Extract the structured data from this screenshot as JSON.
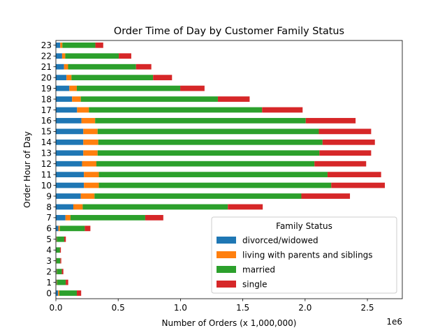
{
  "chart_data": {
    "type": "bar",
    "orientation": "horizontal",
    "stacked": true,
    "title": "Order Time of Day by Customer Family Status",
    "xlabel": "Number of Orders (x 1,000,000)",
    "ylabel": "Order Hour of Day",
    "x_offset_label": "1e6",
    "xlim": [
      0,
      2.78
    ],
    "xticks": [
      "0.0",
      "0.5",
      "1.0",
      "1.5",
      "2.0",
      "2.5"
    ],
    "categories": [
      "0",
      "1",
      "2",
      "3",
      "4",
      "5",
      "6",
      "7",
      "8",
      "9",
      "10",
      "11",
      "12",
      "13",
      "14",
      "15",
      "16",
      "17",
      "18",
      "19",
      "20",
      "21",
      "22",
      "23"
    ],
    "legend": {
      "title": "Family Status",
      "placement": "lower right"
    },
    "series": [
      {
        "name": "divorced/widowed",
        "color": "#1f77b4",
        "values": [
          0.018,
          0.005,
          0.005,
          0.003,
          0.002,
          0.004,
          0.02,
          0.077,
          0.14,
          0.2,
          0.225,
          0.225,
          0.21,
          0.22,
          0.22,
          0.22,
          0.205,
          0.17,
          0.13,
          0.108,
          0.085,
          0.065,
          0.05,
          0.035
        ]
      },
      {
        "name": "living with parents and siblings",
        "color": "#ff7f0e",
        "values": [
          0.01,
          0.004,
          0.003,
          0.002,
          0.001,
          0.003,
          0.012,
          0.04,
          0.075,
          0.11,
          0.12,
          0.12,
          0.115,
          0.115,
          0.12,
          0.115,
          0.11,
          0.095,
          0.07,
          0.06,
          0.04,
          0.033,
          0.025,
          0.017
        ]
      },
      {
        "name": "married",
        "color": "#2ca02c",
        "values": [
          0.14,
          0.07,
          0.04,
          0.03,
          0.03,
          0.06,
          0.2,
          0.6,
          1.165,
          1.66,
          1.865,
          1.835,
          1.75,
          1.78,
          1.8,
          1.775,
          1.69,
          1.39,
          1.1,
          0.83,
          0.655,
          0.545,
          0.43,
          0.265
        ]
      },
      {
        "name": "single",
        "color": "#d62728",
        "values": [
          0.035,
          0.02,
          0.012,
          0.008,
          0.007,
          0.013,
          0.045,
          0.145,
          0.28,
          0.39,
          0.43,
          0.43,
          0.415,
          0.415,
          0.42,
          0.42,
          0.4,
          0.325,
          0.255,
          0.195,
          0.152,
          0.123,
          0.1,
          0.063
        ]
      }
    ]
  }
}
